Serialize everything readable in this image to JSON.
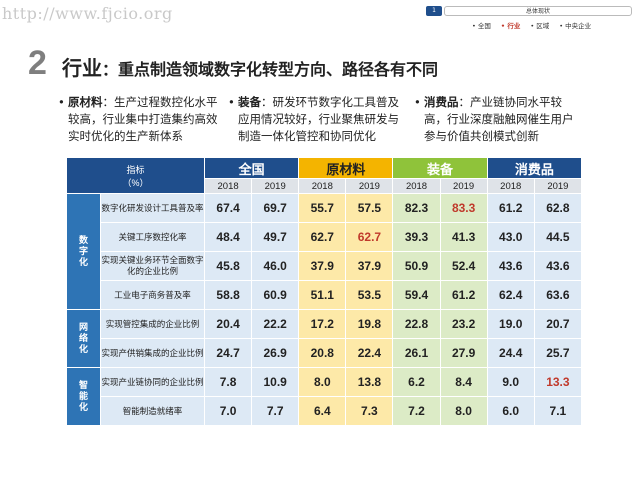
{
  "watermark_url": "http://www.fjcio.org",
  "nav": {
    "number": "1",
    "title": "总体现状",
    "items": [
      "• 全国",
      "• 行业",
      "• 区域",
      "• 中央企业"
    ],
    "active_index": 1
  },
  "section": {
    "number": "2",
    "title": "行业",
    "subtitle": "：重点制造领域数字化转型方向、路径各有不同"
  },
  "bullets": [
    {
      "head": "原材料",
      "text": "：生产过程数控化水平较高，行业集中打造集约高效实时优化的生产新体系"
    },
    {
      "head": "装备",
      "text": "：研发环节数字化工具普及应用情况较好，行业聚焦研发与制造一体化管控和协同优化"
    },
    {
      "head": "消费品",
      "text": "：产业链协同水平较高，行业深度融触网催生用户参与价值共创模式创新"
    }
  ],
  "table": {
    "indicator_header": "指标\n（%）",
    "groups": [
      "全国",
      "原材料",
      "装备",
      "消费品"
    ],
    "years": [
      "2018",
      "2019"
    ],
    "categories": [
      {
        "label": "数\n字\n化",
        "rows": [
          0,
          1,
          2,
          3
        ]
      },
      {
        "label": "网\n络\n化",
        "rows": [
          4,
          5
        ]
      },
      {
        "label": "智\n能\n化",
        "rows": [
          6,
          7
        ]
      }
    ],
    "rows": [
      {
        "indicator": "数字化研发设计工具普及率",
        "values": [
          "67.4",
          "69.7",
          "55.7",
          "57.5",
          "82.3",
          "83.3",
          "61.2",
          "62.8"
        ],
        "highlight": [
          5
        ]
      },
      {
        "indicator": "关键工序数控化率",
        "values": [
          "48.4",
          "49.7",
          "62.7",
          "62.7",
          "39.3",
          "41.3",
          "43.0",
          "44.5"
        ],
        "highlight": [
          3
        ]
      },
      {
        "indicator": "实现关键业务环节全面数字化的企业比例",
        "values": [
          "45.8",
          "46.0",
          "37.9",
          "37.9",
          "50.9",
          "52.4",
          "43.6",
          "43.6"
        ],
        "highlight": []
      },
      {
        "indicator": "工业电子商务普及率",
        "values": [
          "58.8",
          "60.9",
          "51.1",
          "53.5",
          "59.4",
          "61.2",
          "62.4",
          "63.6"
        ],
        "highlight": []
      },
      {
        "indicator": "实现管控集成的企业比例",
        "values": [
          "20.4",
          "22.2",
          "17.2",
          "19.8",
          "22.8",
          "23.2",
          "19.0",
          "20.7"
        ],
        "highlight": []
      },
      {
        "indicator": "实现产供销集成的企业比例",
        "values": [
          "24.7",
          "26.9",
          "20.8",
          "22.4",
          "26.1",
          "27.9",
          "24.4",
          "25.7"
        ],
        "highlight": []
      },
      {
        "indicator": "实现产业链协同的企业比例",
        "values": [
          "7.8",
          "10.9",
          "8.0",
          "13.8",
          "6.2",
          "8.4",
          "9.0",
          "13.3"
        ],
        "highlight": [
          7
        ]
      },
      {
        "indicator": "智能制造就绪率",
        "values": [
          "7.0",
          "7.7",
          "6.4",
          "7.3",
          "7.2",
          "8.0",
          "6.0",
          "7.1"
        ],
        "highlight": []
      }
    ]
  }
}
